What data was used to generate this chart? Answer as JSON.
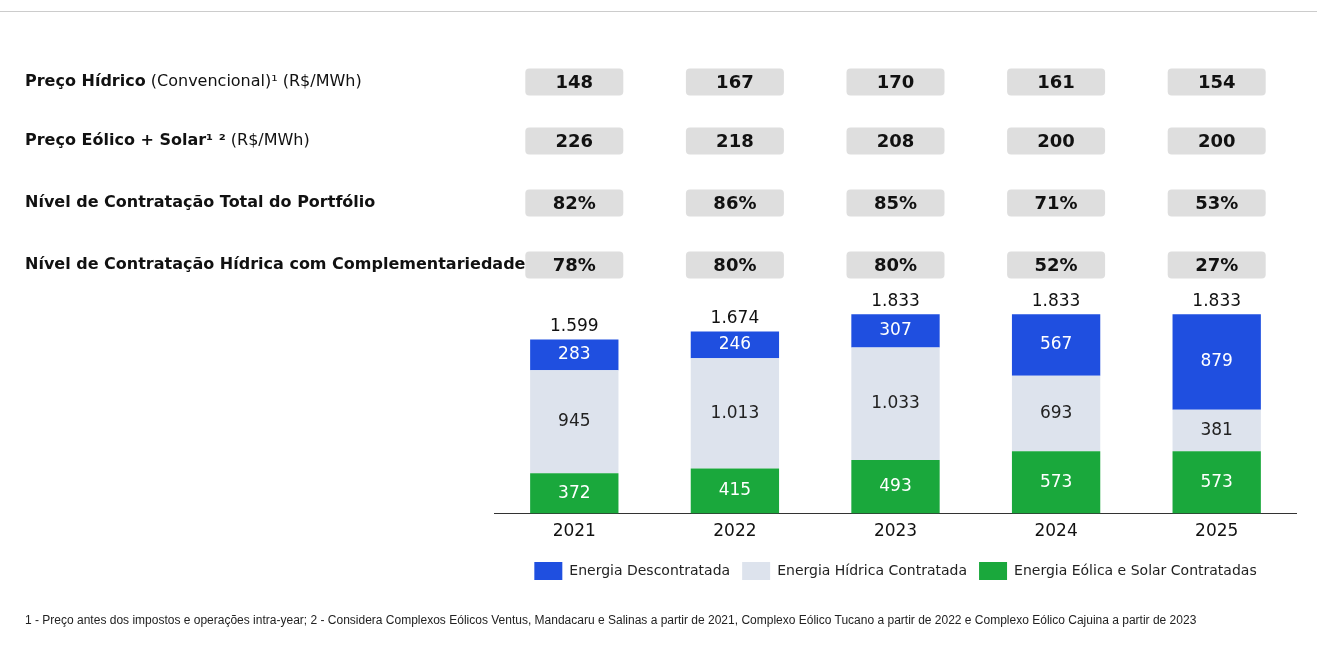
{
  "chart_data": [
    {
      "type": "other",
      "categories": [
        null,
        null,
        null,
        null,
        null
      ],
      "annotations": [
        "Preço Hídrico (Convencional)¹ (R$/MWh)",
        "148",
        "167",
        "170",
        "161",
        "154",
        "Preço Eólico + Solar¹ ² (R$/MWh)",
        "226",
        "218",
        "208",
        "200",
        "200",
        "Nível de Contratação Total do Portfólio",
        "82%",
        "86%",
        "85%",
        "71%",
        "53%",
        "Nível de Contratação Hídrica com Complementariedade",
        "78%",
        "80%",
        "80%",
        "52%",
        "27%"
      ]
    },
    {
      "type": "bar",
      "stacked": true,
      "categories": [
        "2021",
        "2022",
        "2023",
        "2024",
        "2025"
      ],
      "series": [
        {
          "name": "Energia Eólica e Solar Contratadas",
          "color": "#1aa83c",
          "values": [
            372,
            415,
            493,
            573,
            573
          ],
          "value_labels": [
            "372",
            "415",
            "493",
            "573",
            "573"
          ]
        },
        {
          "name": "Energia Hídrica Contratada",
          "color": "#dde3ed",
          "values": [
            945,
            1013,
            1033,
            693,
            381
          ],
          "value_labels": [
            "945",
            "1.013",
            "1.033",
            "693",
            "381"
          ]
        },
        {
          "name": "Energia Descontratada",
          "color": "#1f4fe0",
          "values": [
            283,
            246,
            307,
            567,
            879
          ],
          "value_labels": [
            "283",
            "246",
            "307",
            "567",
            "879"
          ]
        }
      ],
      "totals": [
        "1.599",
        "1.674",
        "1.833",
        "1.833",
        "1.833"
      ],
      "tick_labels": "x",
      "grid": false,
      "legend": "bottom",
      "annotations": [
        "1 - Preço antes dos impostos e operações intra-year; 2 - Considera Complexos Eólicos Ventus, Mandacaru e Salinas a partir de 2021, Complexo Eólico Tucano a partir de 2022 e Complexo Eólico Cajuina a partir de 2023"
      ]
    }
  ]
}
